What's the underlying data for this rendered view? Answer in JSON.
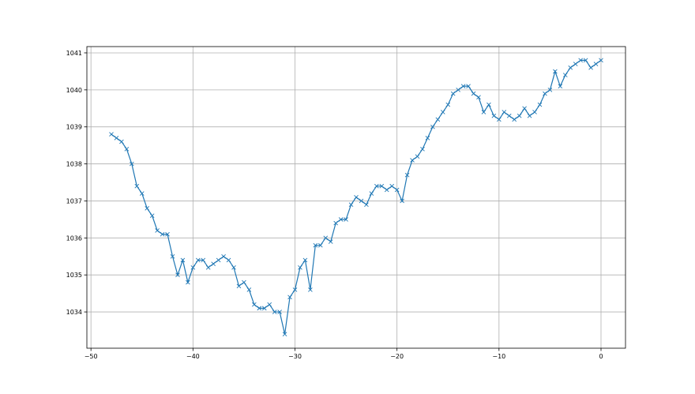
{
  "chart_data": {
    "type": "line",
    "title": "",
    "xlabel": "",
    "ylabel": "",
    "xlim": [
      -50.4,
      2.4
    ],
    "ylim": [
      1033.02,
      1041.17
    ],
    "grid": true,
    "marker": "x",
    "color": "#1f77b4",
    "xticks": [
      -50,
      -40,
      -30,
      -20,
      -10,
      0
    ],
    "xtick_labels": [
      "−50",
      "−40",
      "−30",
      "−20",
      "−10",
      "0"
    ],
    "yticks": [
      1034,
      1035,
      1036,
      1037,
      1038,
      1039,
      1040,
      1041
    ],
    "ytick_labels": [
      "1034",
      "1035",
      "1036",
      "1037",
      "1038",
      "1039",
      "1040",
      "1041"
    ],
    "x_start": -48,
    "x_step": 0.5,
    "values": [
      1038.8,
      1038.7,
      1038.6,
      1038.4,
      1038.0,
      1037.4,
      1037.2,
      1036.8,
      1036.6,
      1036.2,
      1036.1,
      1036.1,
      1035.5,
      1035.0,
      1035.4,
      1034.8,
      1035.2,
      1035.4,
      1035.4,
      1035.2,
      1035.3,
      1035.4,
      1035.5,
      1035.4,
      1035.2,
      1034.7,
      1034.8,
      1034.6,
      1034.2,
      1034.1,
      1034.1,
      1034.2,
      1034.0,
      1034.0,
      1033.4,
      1034.4,
      1034.6,
      1035.2,
      1035.4,
      1034.6,
      1035.8,
      1035.8,
      1036.0,
      1035.9,
      1036.4,
      1036.5,
      1036.5,
      1036.9,
      1037.1,
      1037.0,
      1036.9,
      1037.2,
      1037.4,
      1037.4,
      1037.3,
      1037.4,
      1037.3,
      1037.0,
      1037.7,
      1038.1,
      1038.2,
      1038.4,
      1038.7,
      1039.0,
      1039.2,
      1039.4,
      1039.6,
      1039.9,
      1040.0,
      1040.1,
      1040.1,
      1039.9,
      1039.8,
      1039.4,
      1039.6,
      1039.3,
      1039.2,
      1039.4,
      1039.3,
      1039.2,
      1039.3,
      1039.5,
      1039.3,
      1039.4,
      1039.6,
      1039.9,
      1040.0,
      1040.5,
      1040.1,
      1040.4,
      1040.6,
      1040.7,
      1040.8,
      1040.8,
      1040.6,
      1040.7,
      1040.8
    ]
  }
}
